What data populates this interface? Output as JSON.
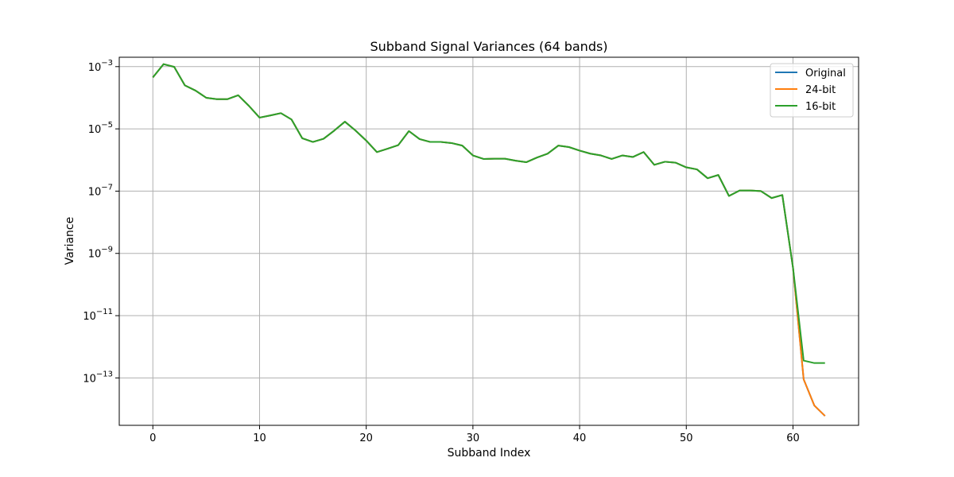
{
  "chart_data": {
    "type": "line",
    "title": "Subband Signal Variances (64 bands)",
    "xlabel": "Subband Index",
    "ylabel": "Variance",
    "xlim": [
      -3.15,
      66.15
    ],
    "ylim": [
      3e-15,
      0.002
    ],
    "yscale": "log",
    "grid": true,
    "legend_position": "top-right",
    "x_ticks": [
      0,
      10,
      20,
      30,
      40,
      50,
      60
    ],
    "y_ticks": [
      {
        "value": 0.001,
        "base": "10",
        "exp": "−3"
      },
      {
        "value": 1e-05,
        "base": "10",
        "exp": "−5"
      },
      {
        "value": 1e-07,
        "base": "10",
        "exp": "−7"
      },
      {
        "value": 1e-09,
        "base": "10",
        "exp": "−9"
      },
      {
        "value": 1e-11,
        "base": "10",
        "exp": "−11"
      },
      {
        "value": 1e-13,
        "base": "10",
        "exp": "−13"
      }
    ],
    "x": [
      0,
      1,
      2,
      3,
      4,
      5,
      6,
      7,
      8,
      9,
      10,
      11,
      12,
      13,
      14,
      15,
      16,
      17,
      18,
      19,
      20,
      21,
      22,
      23,
      24,
      25,
      26,
      27,
      28,
      29,
      30,
      31,
      32,
      33,
      34,
      35,
      36,
      37,
      38,
      39,
      40,
      41,
      42,
      43,
      44,
      45,
      46,
      47,
      48,
      49,
      50,
      51,
      52,
      53,
      54,
      55,
      56,
      57,
      58,
      59,
      60,
      61,
      62,
      63
    ],
    "series": [
      {
        "name": "Original",
        "color": "#1f77b4",
        "values": [
          0.00045,
          0.0012,
          0.00098,
          0.00025,
          0.00017,
          0.0001,
          9e-05,
          9e-05,
          0.00012,
          5.5e-05,
          2.3e-05,
          2.7e-05,
          3.2e-05,
          2e-05,
          5e-06,
          3.8e-06,
          4.8e-06,
          8.8e-06,
          1.7e-05,
          8.8e-06,
          4.2e-06,
          1.8e-06,
          2.3e-06,
          3e-06,
          8.5e-06,
          4.7e-06,
          3.8e-06,
          3.8e-06,
          3.5e-06,
          2.9e-06,
          1.4e-06,
          1.08e-06,
          1.1e-06,
          1.1e-06,
          9.5e-07,
          8.5e-07,
          1.2e-06,
          1.6e-06,
          2.9e-06,
          2.6e-06,
          2e-06,
          1.6e-06,
          1.4e-06,
          1.08e-06,
          1.4e-06,
          1.25e-06,
          1.8e-06,
          7e-07,
          8.8e-07,
          8.2e-07,
          5.8e-07,
          5e-07,
          2.6e-07,
          3.3e-07,
          7e-08,
          1.05e-07,
          1.05e-07,
          1e-07,
          6e-08,
          7.5e-08,
          3.5e-10,
          9e-14,
          1.3e-14,
          6e-15
        ]
      },
      {
        "name": "24-bit",
        "color": "#ff7f0e",
        "values": [
          0.00045,
          0.0012,
          0.00098,
          0.00025,
          0.00017,
          0.0001,
          9e-05,
          9e-05,
          0.00012,
          5.5e-05,
          2.3e-05,
          2.7e-05,
          3.2e-05,
          2e-05,
          5e-06,
          3.8e-06,
          4.8e-06,
          8.8e-06,
          1.7e-05,
          8.8e-06,
          4.2e-06,
          1.8e-06,
          2.3e-06,
          3e-06,
          8.5e-06,
          4.7e-06,
          3.8e-06,
          3.8e-06,
          3.5e-06,
          2.9e-06,
          1.4e-06,
          1.08e-06,
          1.1e-06,
          1.1e-06,
          9.5e-07,
          8.5e-07,
          1.2e-06,
          1.6e-06,
          2.9e-06,
          2.6e-06,
          2e-06,
          1.6e-06,
          1.4e-06,
          1.08e-06,
          1.4e-06,
          1.25e-06,
          1.8e-06,
          7e-07,
          8.8e-07,
          8.2e-07,
          5.8e-07,
          5e-07,
          2.6e-07,
          3.3e-07,
          7e-08,
          1.05e-07,
          1.05e-07,
          1e-07,
          6e-08,
          7.5e-08,
          3.5e-10,
          9e-14,
          1.3e-14,
          6e-15
        ]
      },
      {
        "name": "16-bit",
        "color": "#2ca02c",
        "values": [
          0.00045,
          0.0012,
          0.00098,
          0.00025,
          0.00017,
          0.0001,
          9e-05,
          9e-05,
          0.00012,
          5.5e-05,
          2.3e-05,
          2.7e-05,
          3.2e-05,
          2e-05,
          5e-06,
          3.8e-06,
          4.8e-06,
          8.8e-06,
          1.7e-05,
          8.8e-06,
          4.2e-06,
          1.8e-06,
          2.3e-06,
          3e-06,
          8.5e-06,
          4.7e-06,
          3.8e-06,
          3.8e-06,
          3.5e-06,
          2.9e-06,
          1.4e-06,
          1.08e-06,
          1.1e-06,
          1.1e-06,
          9.5e-07,
          8.5e-07,
          1.2e-06,
          1.6e-06,
          2.9e-06,
          2.6e-06,
          2e-06,
          1.6e-06,
          1.4e-06,
          1.08e-06,
          1.4e-06,
          1.25e-06,
          1.8e-06,
          7e-07,
          8.8e-07,
          8.2e-07,
          5.8e-07,
          5e-07,
          2.6e-07,
          3.3e-07,
          7e-08,
          1.05e-07,
          1.05e-07,
          1e-07,
          6e-08,
          7.5e-08,
          3.5e-10,
          3.6e-13,
          3e-13,
          3e-13
        ]
      }
    ]
  }
}
